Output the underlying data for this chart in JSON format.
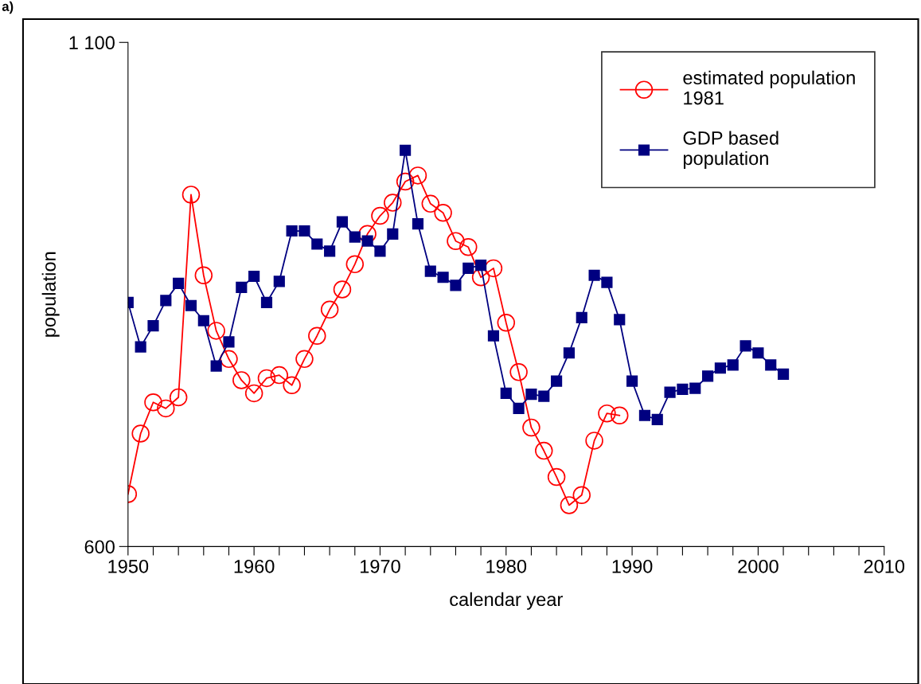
{
  "chart_data": {
    "type": "line",
    "xlabel": "calendar year",
    "ylabel": "population",
    "annotations": [
      "a)"
    ],
    "xlim": [
      1950,
      2010
    ],
    "ylim": [
      600,
      1100
    ],
    "xticks": [
      1950,
      {
        "value": 1952,
        "label": null
      },
      {
        "value": 1954,
        "label": null
      },
      {
        "value": 1956,
        "label": null
      },
      {
        "value": 1958,
        "label": null
      },
      1960,
      {
        "value": 1962,
        "label": null
      },
      {
        "value": 1964,
        "label": null
      },
      {
        "value": 1966,
        "label": null
      },
      {
        "value": 1968,
        "label": null
      },
      1970,
      {
        "value": 1972,
        "label": null
      },
      {
        "value": 1974,
        "label": null
      },
      {
        "value": 1976,
        "label": null
      },
      {
        "value": 1978,
        "label": null
      },
      1980,
      {
        "value": 1982,
        "label": null
      },
      {
        "value": 1984,
        "label": null
      },
      {
        "value": 1986,
        "label": null
      },
      {
        "value": 1988,
        "label": null
      },
      1990,
      {
        "value": 1992,
        "label": null
      },
      {
        "value": 1994,
        "label": null
      },
      {
        "value": 1996,
        "label": null
      },
      {
        "value": 1998,
        "label": null
      },
      2000,
      {
        "value": 2002,
        "label": null
      },
      {
        "value": 2004,
        "label": null
      },
      {
        "value": 2006,
        "label": null
      },
      {
        "value": 2008,
        "label": null
      },
      2010
    ],
    "yticks": [
      600,
      {
        "value": 1100,
        "label": "1 100"
      }
    ],
    "grid": false,
    "legend": "top right",
    "series": [
      {
        "name": "estimated population\n1981",
        "color": "#ff0000",
        "marker": "circle",
        "x": [
          1950,
          1951,
          1952,
          1953,
          1954,
          1955,
          1956,
          1957,
          1958,
          1959,
          1960,
          1961,
          1962,
          1963,
          1964,
          1965,
          1966,
          1967,
          1968,
          1969,
          1970,
          1971,
          1972,
          1973,
          1974,
          1975,
          1976,
          1977,
          1978,
          1979,
          1980,
          1981,
          1982,
          1983,
          1984,
          1985,
          1986,
          1987,
          1988,
          1989
        ],
        "values": [
          652,
          712,
          743,
          737,
          748,
          949,
          869,
          814,
          786,
          765,
          752,
          767,
          770,
          760,
          786,
          809,
          835,
          855,
          880,
          910,
          928,
          941,
          962,
          968,
          940,
          931,
          903,
          897,
          867,
          876,
          822,
          773,
          718,
          695,
          669,
          641,
          651,
          705,
          732,
          730
        ]
      },
      {
        "name": "GDP based\npopulation",
        "color": "#000080",
        "marker": "square",
        "x": [
          1950,
          1951,
          1952,
          1953,
          1954,
          1955,
          1956,
          1957,
          1958,
          1959,
          1960,
          1961,
          1962,
          1963,
          1964,
          1965,
          1966,
          1967,
          1968,
          1969,
          1970,
          1971,
          1972,
          1973,
          1974,
          1975,
          1976,
          1977,
          1978,
          1979,
          1980,
          1981,
          1982,
          1983,
          1984,
          1985,
          1986,
          1987,
          1988,
          1989,
          1990,
          1991,
          1992,
          1993,
          1994,
          1995,
          1996,
          1997,
          1998,
          1999,
          2000,
          2001,
          2002
        ],
        "values": [
          842,
          798,
          819,
          844,
          861,
          839,
          824,
          779,
          803,
          857,
          868,
          842,
          863,
          913,
          913,
          900,
          893,
          922,
          907,
          903,
          893,
          910,
          993,
          920,
          873,
          867,
          859,
          876,
          879,
          809,
          752,
          737,
          751,
          749,
          764,
          792,
          827,
          869,
          862,
          825,
          764,
          730,
          726,
          753,
          756,
          757,
          769,
          777,
          780,
          799,
          792,
          780,
          771
        ]
      }
    ]
  }
}
